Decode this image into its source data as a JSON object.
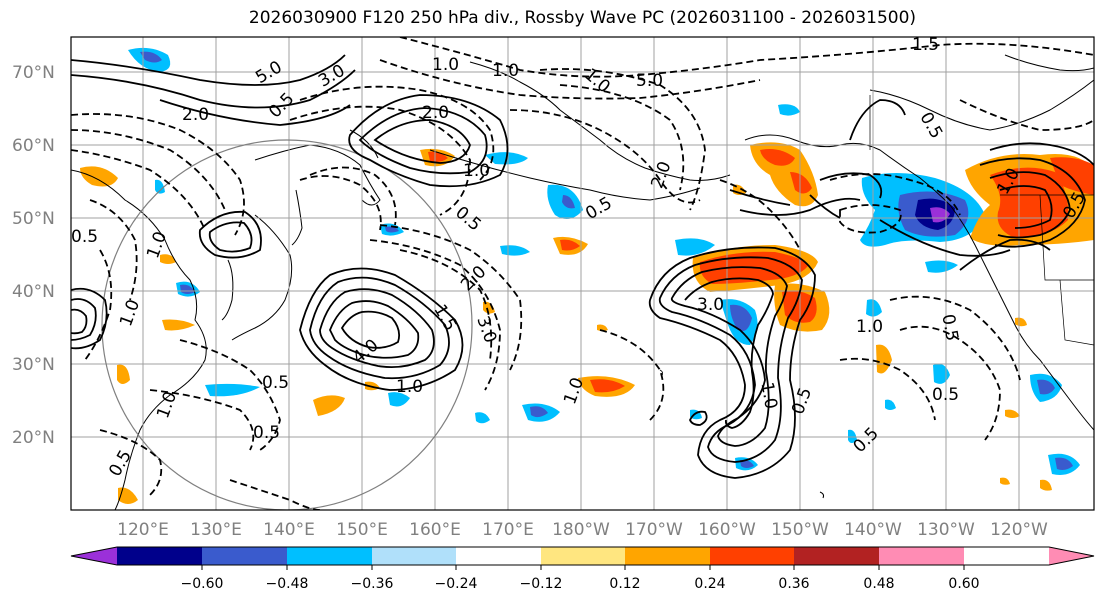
{
  "title": "2026030900 F120 250 hPa div., Rossby Wave PC (2026031100 - 2026031500)",
  "lat_labels": [
    "70°N",
    "60°N",
    "50°N",
    "40°N",
    "30°N",
    "20°N"
  ],
  "lon_labels": [
    "120°E",
    "130°E",
    "140°E",
    "150°E",
    "160°E",
    "170°E",
    "180°W",
    "170°W",
    "160°W",
    "150°W",
    "140°W",
    "130°W",
    "120°W"
  ],
  "colorbar": {
    "colors": [
      "#9b30d9",
      "#00008b",
      "#3a5bcd",
      "#00bfff",
      "#b0e0fa",
      "#ffffff",
      "#ffe680",
      "#ffa500",
      "#ff4000",
      "#b22222",
      "#ff8cb4"
    ],
    "labels": [
      "−0.60",
      "−0.48",
      "−0.36",
      "−0.24",
      "−0.12",
      "0.12",
      "0.24",
      "0.36",
      "0.48",
      "0.60"
    ]
  },
  "contour_labels": [
    "1.5",
    "1.0",
    "5.0",
    "3.0",
    "2.0",
    "0.5",
    "1.0",
    "5.0",
    "2.0",
    "1.0",
    "2.0",
    "1.0",
    "0.5",
    "0.5",
    "0.5",
    "0.5",
    "1.0",
    "2.0",
    "1.5",
    "3.0",
    "4.0",
    "1.0",
    "0.5",
    "0.5",
    "1.0",
    "1.0",
    "3.0",
    "1.0",
    "0.5",
    "1.0",
    "0.5",
    "0.5",
    "0.5",
    "1.0",
    "0.5",
    "1.0",
    "0.5"
  ]
}
